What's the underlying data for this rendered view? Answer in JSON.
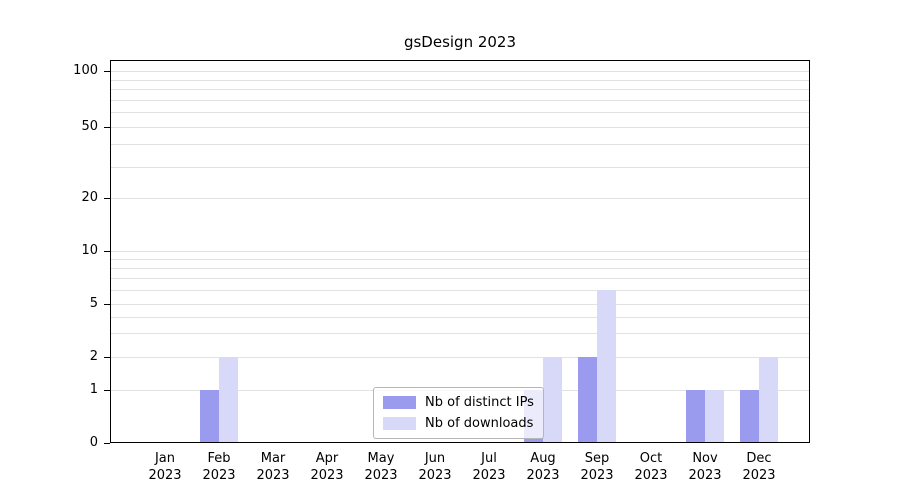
{
  "chart_data": {
    "type": "bar",
    "title": "gsDesign 2023",
    "categories": [
      "Jan\n2023",
      "Feb\n2023",
      "Mar\n2023",
      "Apr\n2023",
      "May\n2023",
      "Jun\n2023",
      "Jul\n2023",
      "Aug\n2023",
      "Sep\n2023",
      "Oct\n2023",
      "Nov\n2023",
      "Dec\n2023"
    ],
    "series": [
      {
        "name": "Nb of distinct IPs",
        "color": "#9a9aee",
        "values": [
          0,
          1,
          0,
          0,
          0,
          0,
          0,
          1,
          2,
          0,
          1,
          1
        ]
      },
      {
        "name": "Nb of downloads",
        "color": "#d8d8f8",
        "values": [
          0,
          2,
          0,
          0,
          0,
          0,
          0,
          2,
          6,
          0,
          1,
          2
        ]
      }
    ],
    "y_axis": {
      "ticks": [
        0,
        1,
        2,
        5,
        10,
        20,
        50,
        100
      ],
      "scale": "log-like",
      "minor_gridlines": [
        1,
        2,
        3,
        4,
        5,
        6,
        7,
        8,
        9,
        10,
        20,
        30,
        40,
        50,
        60,
        70,
        80,
        90,
        100
      ]
    },
    "legend": {
      "entries": [
        "Nb of distinct IPs",
        "Nb of downloads"
      ],
      "position": "lower center inside"
    },
    "grid": true
  },
  "colors": {
    "background": "#ffffff",
    "grid": "#e2e2e2",
    "axis": "#000000",
    "legend_border": "#b6b6b6",
    "series_dark": "#9a9aee",
    "series_light": "#d8d8f8"
  }
}
